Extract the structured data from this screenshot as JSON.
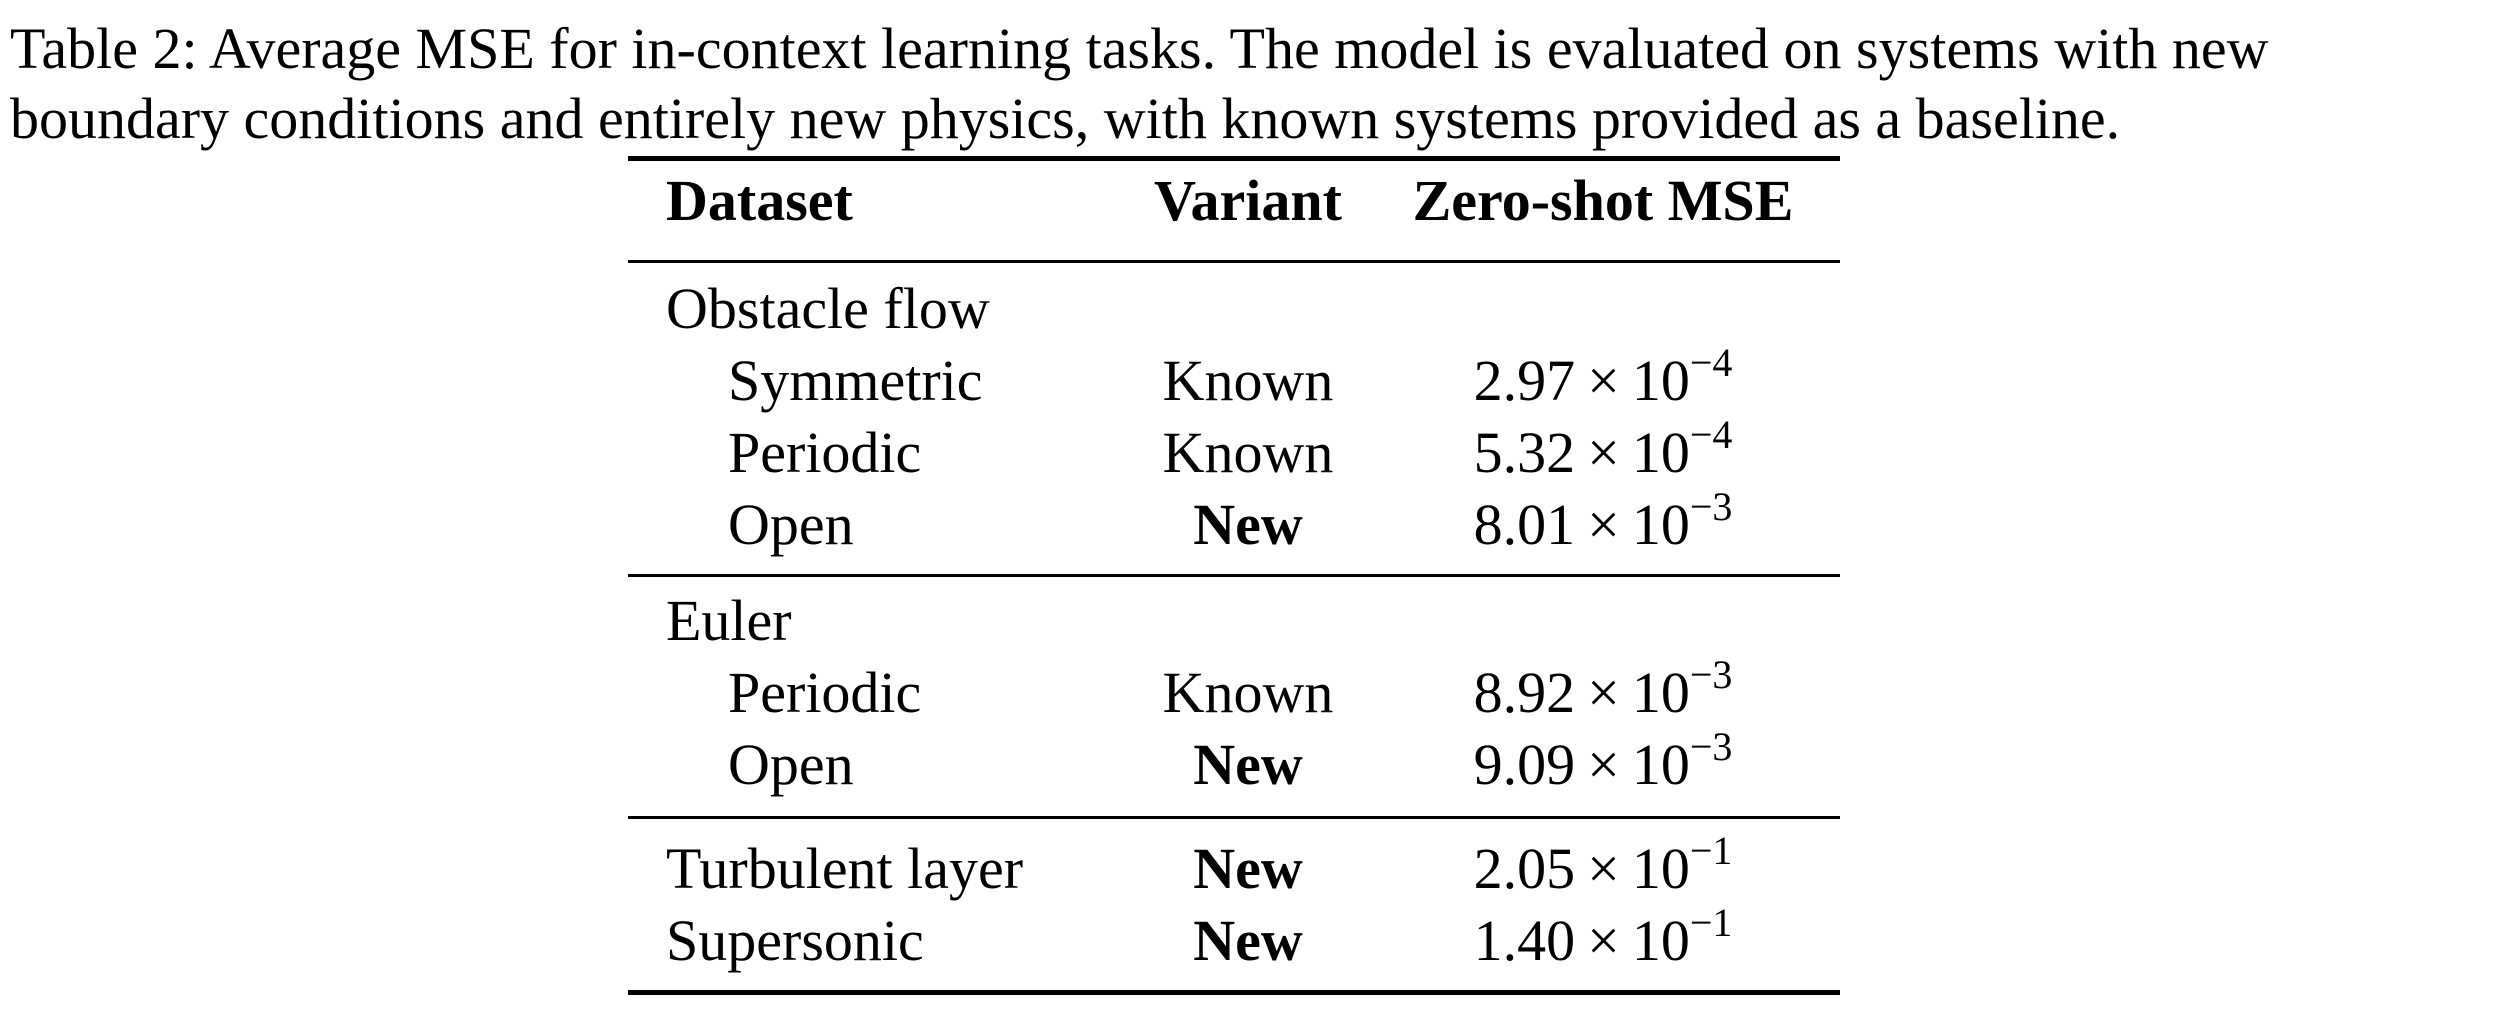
{
  "caption": {
    "line1": "Table 2: Average MSE for in-context learning tasks. The model is evaluated on systems with new",
    "line2": "boundary conditions and entirely new physics, with known systems provided as a baseline."
  },
  "table": {
    "headers": {
      "dataset": "Dataset",
      "variant": "Variant",
      "mse": "Zero-shot MSE"
    },
    "groups": [
      {
        "name": "Obstacle flow",
        "rows": [
          {
            "dataset": "Symmetric",
            "variant": "Known",
            "mantissa": "2.97",
            "exponent": "−4"
          },
          {
            "dataset": "Periodic",
            "variant": "Known",
            "mantissa": "5.32",
            "exponent": "−4"
          },
          {
            "dataset": "Open",
            "variant": "New",
            "mantissa": "8.01",
            "exponent": "−3"
          }
        ]
      },
      {
        "name": "Euler",
        "rows": [
          {
            "dataset": "Periodic",
            "variant": "Known",
            "mantissa": "8.92",
            "exponent": "−3"
          },
          {
            "dataset": "Open",
            "variant": "New",
            "mantissa": "9.09",
            "exponent": "−3"
          }
        ]
      },
      {
        "name": "",
        "rows": [
          {
            "dataset": "Turbulent layer",
            "variant": "New",
            "mantissa": "2.05",
            "exponent": "−1"
          },
          {
            "dataset": "Supersonic",
            "variant": "New",
            "mantissa": "1.40",
            "exponent": "−1"
          }
        ]
      }
    ],
    "times_symbol": "×",
    "base": "10"
  }
}
